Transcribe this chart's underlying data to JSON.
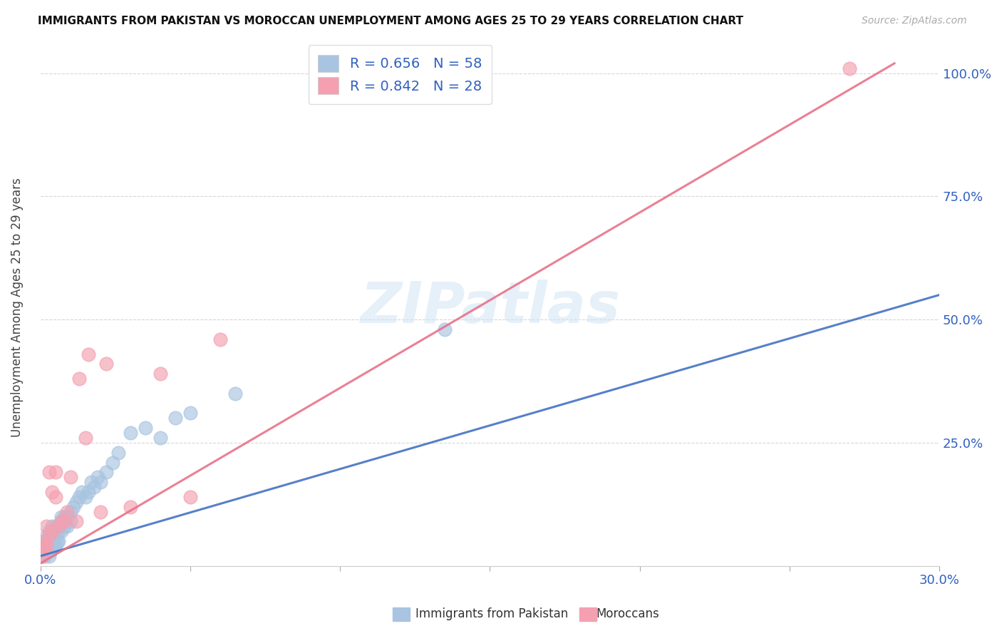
{
  "title": "IMMIGRANTS FROM PAKISTAN VS MOROCCAN UNEMPLOYMENT AMONG AGES 25 TO 29 YEARS CORRELATION CHART",
  "source": "Source: ZipAtlas.com",
  "ylabel": "Unemployment Among Ages 25 to 29 years",
  "xlim": [
    0.0,
    0.3
  ],
  "ylim": [
    0.0,
    1.05
  ],
  "xtick_positions": [
    0.0,
    0.05,
    0.1,
    0.15,
    0.2,
    0.25,
    0.3
  ],
  "xticklabels": [
    "0.0%",
    "",
    "",
    "",
    "",
    "",
    "30.0%"
  ],
  "ytick_positions": [
    0.0,
    0.25,
    0.5,
    0.75,
    1.0
  ],
  "yticklabels": [
    "",
    "25.0%",
    "50.0%",
    "75.0%",
    "100.0%"
  ],
  "pakistan_R": "0.656",
  "pakistan_N": "58",
  "morocco_R": "0.842",
  "morocco_N": "28",
  "pakistan_color": "#a8c4e0",
  "morocco_color": "#f4a0b0",
  "pakistan_line_color": "#4472c4",
  "morocco_line_color": "#e8728a",
  "legend_text_color": "#3060c0",
  "watermark": "ZIPatlas",
  "pakistan_line_x": [
    0.0,
    0.3
  ],
  "pakistan_line_y": [
    0.02,
    0.55
  ],
  "morocco_line_x": [
    0.0,
    0.285
  ],
  "morocco_line_y": [
    0.005,
    1.02
  ],
  "pakistan_x": [
    0.0005,
    0.001,
    0.001,
    0.0015,
    0.0015,
    0.002,
    0.002,
    0.002,
    0.0025,
    0.0025,
    0.003,
    0.003,
    0.003,
    0.003,
    0.0035,
    0.0035,
    0.004,
    0.004,
    0.004,
    0.004,
    0.0045,
    0.0045,
    0.005,
    0.005,
    0.005,
    0.0055,
    0.006,
    0.006,
    0.006,
    0.007,
    0.007,
    0.007,
    0.008,
    0.008,
    0.009,
    0.009,
    0.01,
    0.01,
    0.011,
    0.012,
    0.013,
    0.014,
    0.015,
    0.016,
    0.017,
    0.018,
    0.019,
    0.02,
    0.022,
    0.024,
    0.026,
    0.03,
    0.035,
    0.04,
    0.045,
    0.05,
    0.065,
    0.135
  ],
  "pakistan_y": [
    0.02,
    0.03,
    0.04,
    0.02,
    0.05,
    0.03,
    0.04,
    0.06,
    0.03,
    0.05,
    0.02,
    0.04,
    0.06,
    0.07,
    0.03,
    0.05,
    0.04,
    0.05,
    0.07,
    0.08,
    0.04,
    0.06,
    0.04,
    0.06,
    0.08,
    0.05,
    0.05,
    0.07,
    0.08,
    0.07,
    0.09,
    0.1,
    0.08,
    0.1,
    0.08,
    0.1,
    0.09,
    0.11,
    0.12,
    0.13,
    0.14,
    0.15,
    0.14,
    0.15,
    0.17,
    0.16,
    0.18,
    0.17,
    0.19,
    0.21,
    0.23,
    0.27,
    0.28,
    0.26,
    0.3,
    0.31,
    0.35,
    0.48
  ],
  "morocco_x": [
    0.0005,
    0.001,
    0.001,
    0.0015,
    0.002,
    0.002,
    0.003,
    0.003,
    0.004,
    0.004,
    0.005,
    0.005,
    0.006,
    0.007,
    0.008,
    0.009,
    0.01,
    0.012,
    0.013,
    0.015,
    0.016,
    0.02,
    0.022,
    0.03,
    0.04,
    0.05,
    0.06,
    0.27
  ],
  "morocco_y": [
    0.02,
    0.03,
    0.05,
    0.04,
    0.04,
    0.08,
    0.06,
    0.19,
    0.07,
    0.15,
    0.14,
    0.19,
    0.08,
    0.09,
    0.09,
    0.11,
    0.18,
    0.09,
    0.38,
    0.26,
    0.43,
    0.11,
    0.41,
    0.12,
    0.39,
    0.14,
    0.46,
    1.01
  ]
}
